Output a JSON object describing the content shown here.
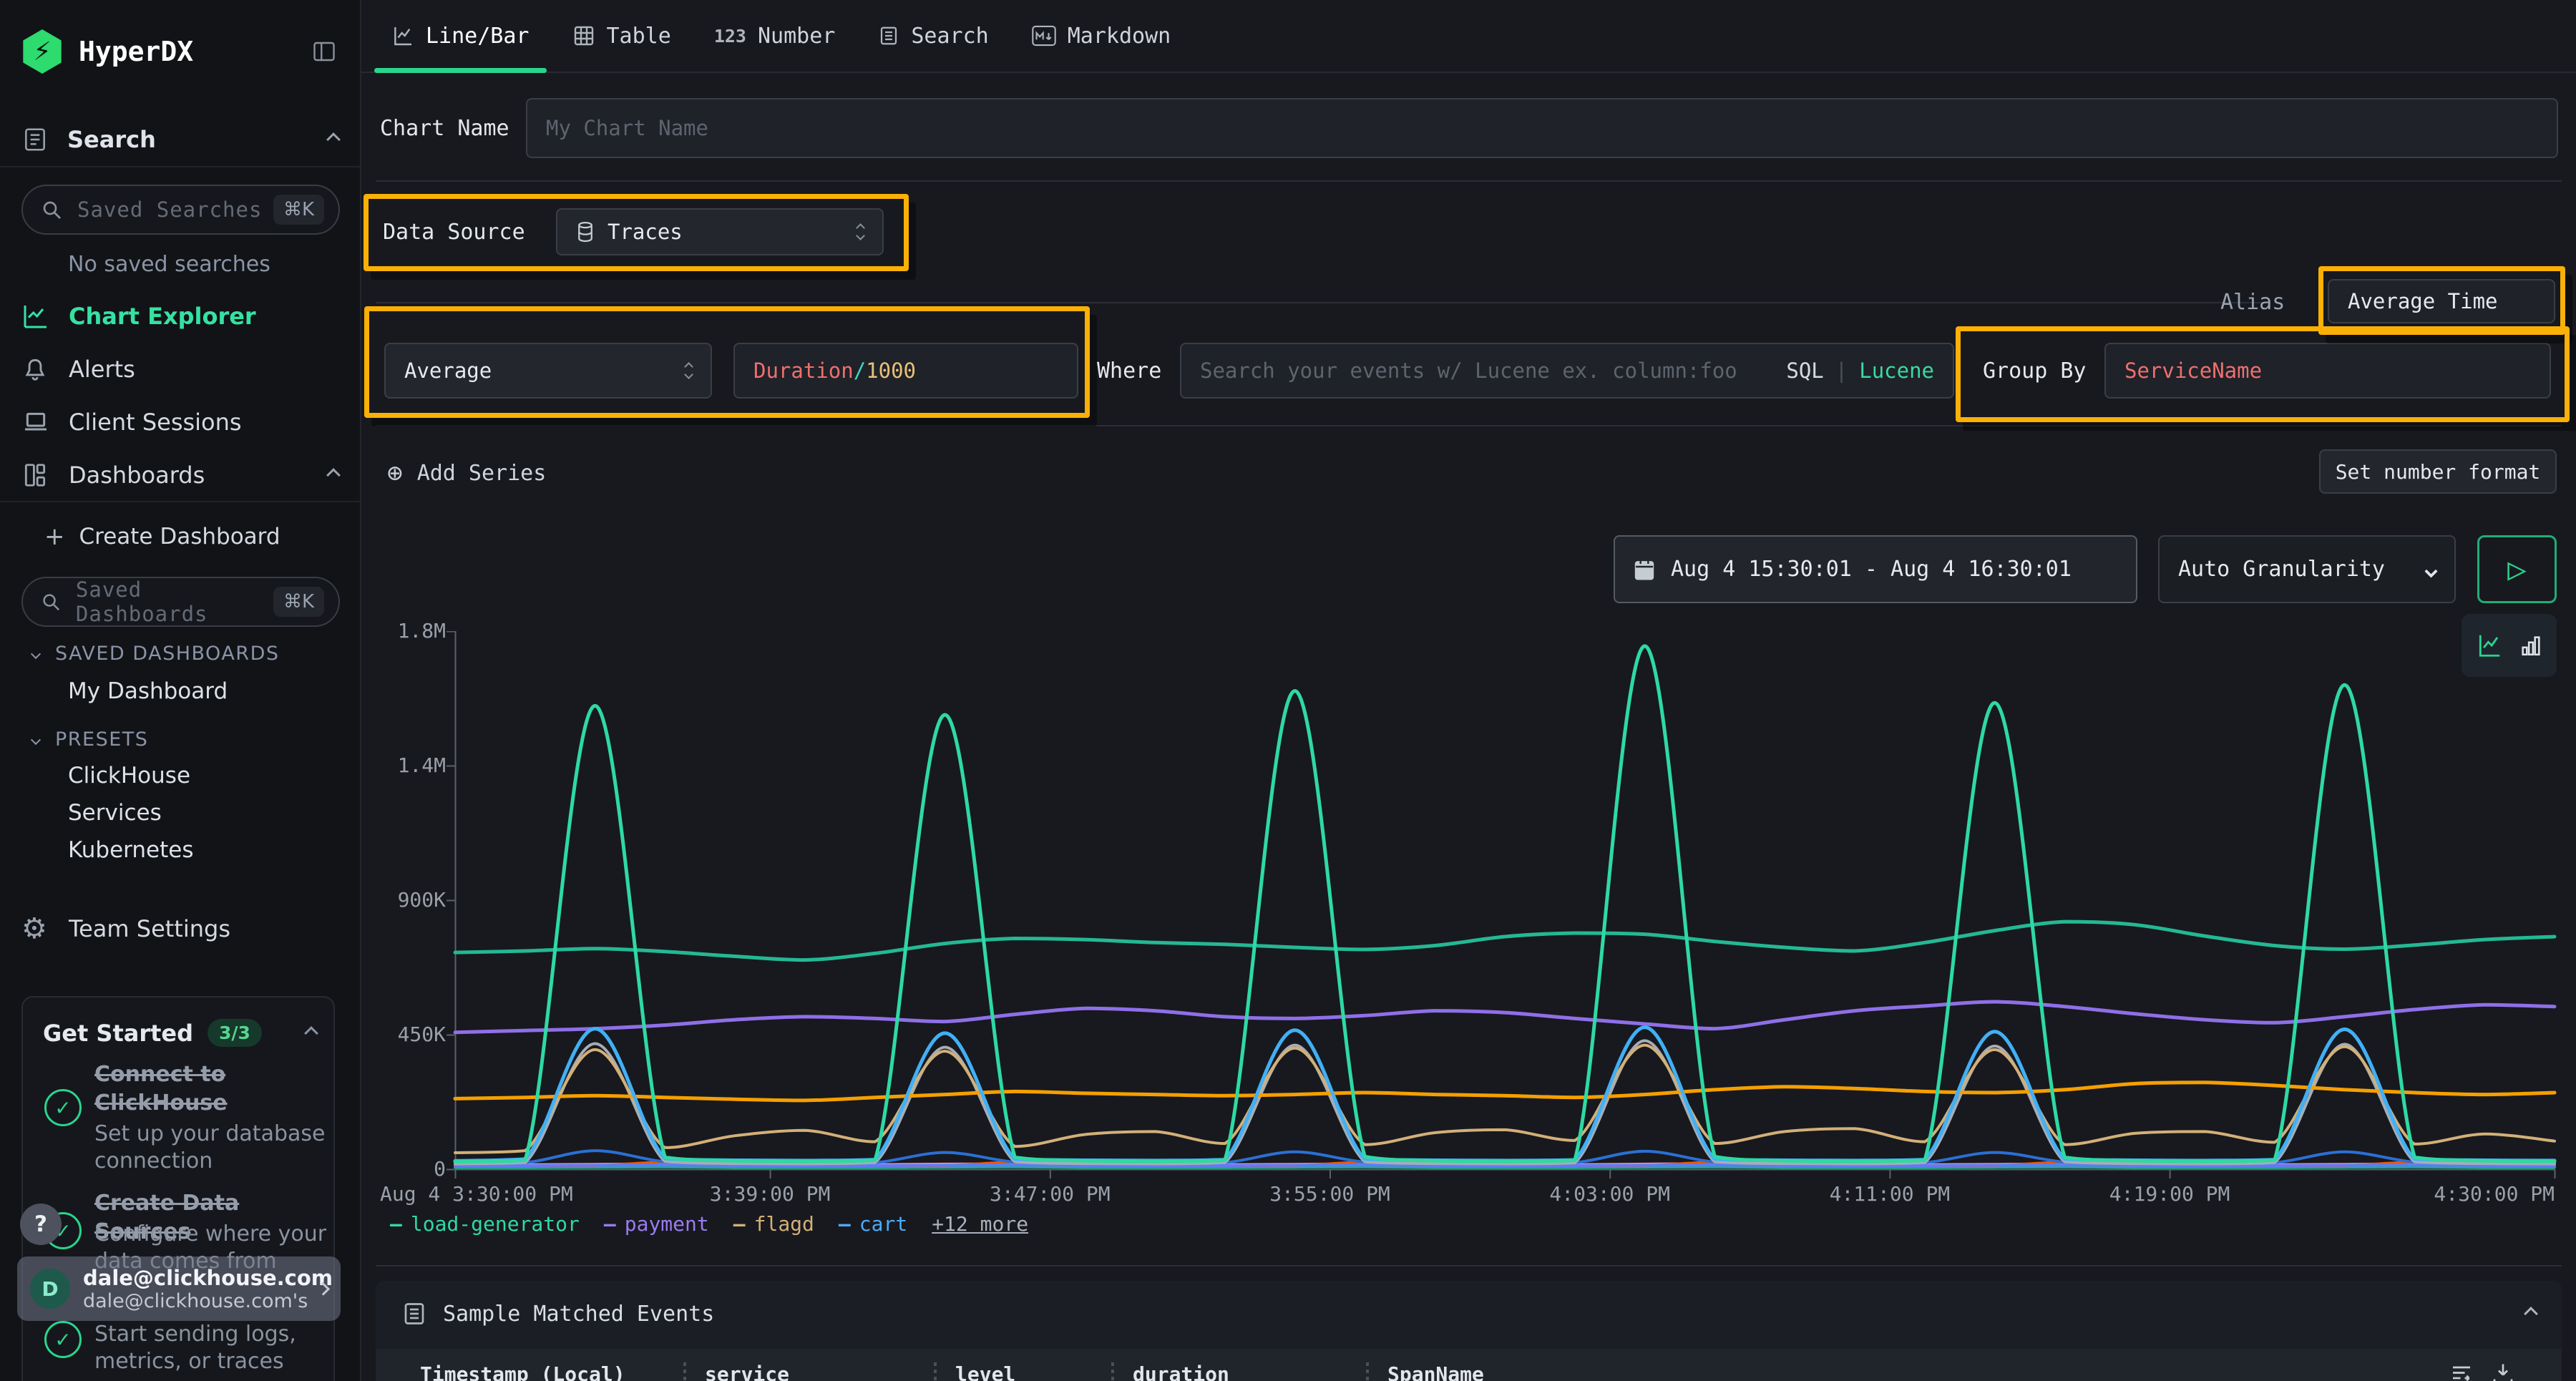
{
  "app": {
    "title": "HyperDX"
  },
  "colors": {
    "accent_green": "#2bd48d",
    "highlight_yellow": "#fab005",
    "expr_field_red": "#ef6f6f",
    "expr_operator_teal": "#3fd6c3",
    "expr_value_amber": "#e8c07a",
    "lucene_green": "#3bd9a0"
  },
  "sidebar": {
    "search_section": {
      "label": "Search"
    },
    "saved_searches": {
      "placeholder": "Saved Searches",
      "shortcut": "⌘K",
      "empty": "No saved searches"
    },
    "nav": [
      {
        "label": "Chart Explorer",
        "active": true
      },
      {
        "label": "Alerts"
      },
      {
        "label": "Client Sessions"
      },
      {
        "label": "Dashboards"
      }
    ],
    "create_dashboard": {
      "label": "Create Dashboard"
    },
    "saved_dashboards": {
      "placeholder": "Saved Dashboards",
      "shortcut": "⌘K"
    },
    "groups": [
      {
        "label": "SAVED DASHBOARDS",
        "items": [
          {
            "label": "My Dashboard"
          }
        ]
      },
      {
        "label": "PRESETS",
        "items": [
          {
            "label": "ClickHouse"
          },
          {
            "label": "Services"
          },
          {
            "label": "Kubernetes"
          }
        ]
      }
    ],
    "team_settings": {
      "label": "Team Settings"
    },
    "get_started": {
      "title": "Get Started",
      "badge": "3/3",
      "steps": [
        {
          "title": "Connect to ClickHouse",
          "subtitle": "Set up your database connection",
          "done": true
        },
        {
          "title": "Create Data Sources",
          "subtitle": "Configure where your data comes from",
          "done": true
        },
        {
          "title": "",
          "subtitle": "Start sending logs, metrics, or traces",
          "done": true
        }
      ]
    },
    "help_button": "?",
    "user": {
      "initial": "D",
      "email": "dale@clickhouse.com",
      "subtitle": "dale@clickhouse.com's"
    }
  },
  "tabs": [
    {
      "label": "Line/Bar",
      "active": true
    },
    {
      "label": "Table"
    },
    {
      "label": "Number",
      "icon_text": "123"
    },
    {
      "label": "Search"
    },
    {
      "label": "Markdown"
    }
  ],
  "editor": {
    "chart_name": {
      "label": "Chart Name",
      "placeholder": "My Chart Name",
      "value": ""
    },
    "data_source": {
      "label": "Data Source",
      "value": "Traces"
    },
    "aggregation": {
      "value": "Average"
    },
    "field": {
      "field": "Duration",
      "operator": "/",
      "value": "1000"
    },
    "where": {
      "label": "Where",
      "placeholder": "Search your events w/ Lucene ex. column:foo",
      "sql": "SQL",
      "divider": "|",
      "lucene": "Lucene"
    },
    "group_by": {
      "label": "Group By",
      "value": "ServiceName"
    },
    "alias": {
      "label": "Alias",
      "value": "Average Time"
    },
    "add_series": {
      "label": "Add Series"
    },
    "set_number_format": {
      "label": "Set number format"
    },
    "time_range": {
      "value": "Aug 4 15:30:01 - Aug 4 16:30:01"
    },
    "granularity": {
      "value": "Auto Granularity"
    }
  },
  "events_panel": {
    "title": "Sample Matched Events",
    "columns": [
      "Timestamp (Local)",
      "service",
      "level",
      "duration",
      "SpanName"
    ]
  },
  "chart_data": {
    "type": "line",
    "title": "",
    "x_unit": "minutes after Aug 4 3:30:00 PM",
    "x_step_minutes": 2,
    "x_range_minutes": [
      0,
      60
    ],
    "x_ticks": [
      {
        "minute": 0,
        "label": "Aug 4 3:30:00 PM"
      },
      {
        "minute": 9,
        "label": "3:39:00 PM"
      },
      {
        "minute": 17,
        "label": "3:47:00 PM"
      },
      {
        "minute": 25,
        "label": "3:55:00 PM"
      },
      {
        "minute": 33,
        "label": "4:03:00 PM"
      },
      {
        "minute": 41,
        "label": "4:11:00 PM"
      },
      {
        "minute": 49,
        "label": "4:19:00 PM"
      },
      {
        "minute": 60,
        "label": "4:30:00 PM"
      }
    ],
    "y_unit": "thousands (K)",
    "ylim": [
      0,
      1800
    ],
    "y_ticks": [
      {
        "value": 0,
        "label": "0"
      },
      {
        "value": 450,
        "label": "450K"
      },
      {
        "value": 900,
        "label": "900K"
      },
      {
        "value": 1350,
        "label": "1.4M"
      },
      {
        "value": 1800,
        "label": "1.8M"
      }
    ],
    "grid": false,
    "legend_position": "bottom",
    "legend": [
      {
        "label": "load-generator",
        "color": "#2fd9a3"
      },
      {
        "label": "payment",
        "color": "#9b7bf0"
      },
      {
        "label": "flagd",
        "color": "#d3b078"
      },
      {
        "label": "cart",
        "color": "#4dabf7"
      }
    ],
    "legend_more": "+12 more",
    "series": [
      {
        "name": "unnamed-teal",
        "color": "#11b384",
        "width": 4,
        "values": [
          6,
          6,
          7,
          8,
          6,
          6,
          6,
          7,
          8,
          6,
          6,
          6,
          7,
          8,
          6,
          6,
          6,
          7,
          8,
          6,
          6,
          6,
          7,
          8,
          6,
          6,
          6,
          7,
          8,
          6,
          6
        ]
      },
      {
        "name": "unnamed-pink",
        "color": "#ef8bb4",
        "width": 4,
        "values": [
          14,
          15,
          16,
          18,
          15,
          14,
          15,
          17,
          18,
          15,
          14,
          15,
          16,
          18,
          15,
          14,
          15,
          17,
          19,
          15,
          14,
          15,
          16,
          18,
          15,
          14,
          15,
          16,
          18,
          15,
          14
        ]
      },
      {
        "name": "unnamed-dark-orange",
        "color": "#e8590c",
        "width": 4,
        "values": [
          10,
          10,
          12,
          24,
          24,
          10,
          10,
          12,
          24,
          24,
          10,
          10,
          12,
          24,
          24,
          10,
          10,
          12,
          24,
          24,
          10,
          10,
          12,
          24,
          24,
          10,
          10,
          12,
          24,
          24,
          10
        ]
      },
      {
        "name": "unnamed-blue",
        "color": "#2b6fd4",
        "width": 4,
        "values": [
          20,
          22,
          62,
          25,
          20,
          21,
          22,
          56,
          24,
          20,
          21,
          22,
          58,
          24,
          21,
          20,
          22,
          60,
          24,
          21,
          20,
          22,
          56,
          24,
          20,
          21,
          22,
          58,
          24,
          21,
          20
        ]
      },
      {
        "name": "unnamed-indigo",
        "color": "#5c7cfa",
        "width": 4,
        "values": [
          12,
          12,
          13,
          14,
          12,
          12,
          12,
          13,
          14,
          12,
          12,
          12,
          13,
          14,
          12,
          12,
          12,
          13,
          14,
          12,
          12,
          12,
          13,
          14,
          12,
          12,
          12,
          13,
          14,
          12,
          12
        ]
      },
      {
        "name": "unnamed-gray",
        "color": "#a7adb5",
        "width": 4,
        "values": [
          18,
          22,
          420,
          26,
          19,
          18,
          22,
          408,
          25,
          19,
          18,
          22,
          415,
          25,
          19,
          18,
          21,
          430,
          25,
          19,
          18,
          22,
          412,
          25,
          19,
          18,
          22,
          418,
          25,
          19,
          18
        ]
      },
      {
        "name": "flagd",
        "color": "#d3b078",
        "width": 4,
        "values": [
          55,
          62,
          400,
          72,
          112,
          130,
          92,
          395,
          76,
          116,
          126,
          86,
          405,
          82,
          122,
          132,
          96,
          415,
          86,
          126,
          136,
          92,
          400,
          82,
          120,
          126,
          90,
          410,
          84,
          118,
          94
        ]
      },
      {
        "name": "unnamed-orange",
        "color": "#f59f00",
        "width": 5,
        "values": [
          236,
          240,
          246,
          240,
          234,
          230,
          240,
          250,
          260,
          254,
          250,
          246,
          250,
          256,
          250,
          246,
          240,
          250,
          266,
          276,
          270,
          260,
          256,
          266,
          286,
          290,
          280,
          266,
          256,
          250,
          256
        ]
      },
      {
        "name": "payment",
        "color": "#8f6fe8",
        "width": 5,
        "values": [
          458,
          464,
          470,
          482,
          500,
          510,
          504,
          494,
          518,
          538,
          530,
          510,
          504,
          514,
          530,
          524,
          504,
          486,
          470,
          500,
          530,
          546,
          560,
          544,
          520,
          500,
          490,
          510,
          534,
          550,
          544
        ]
      },
      {
        "name": "unnamed-green",
        "color": "#24b894",
        "width": 5,
        "values": [
          725,
          730,
          738,
          728,
          712,
          700,
          722,
          755,
          772,
          768,
          758,
          752,
          742,
          735,
          748,
          778,
          790,
          786,
          762,
          742,
          730,
          758,
          798,
          828,
          818,
          780,
          748,
          736,
          750,
          768,
          778
        ]
      },
      {
        "name": "cart",
        "color": "#41b0f5",
        "width": 5,
        "values": [
          28,
          34,
          470,
          36,
          30,
          29,
          32,
          455,
          34,
          30,
          29,
          32,
          465,
          34,
          30,
          29,
          31,
          475,
          34,
          30,
          29,
          32,
          460,
          34,
          30,
          29,
          32,
          468,
          34,
          30,
          29
        ]
      },
      {
        "name": "load-generator",
        "color": "#2fd9a3",
        "width": 5,
        "values": [
          25,
          30,
          1550,
          40,
          28,
          26,
          30,
          1520,
          40,
          28,
          26,
          30,
          1600,
          42,
          28,
          26,
          30,
          1750,
          42,
          28,
          26,
          30,
          1560,
          40,
          28,
          26,
          30,
          1620,
          40,
          28,
          26
        ]
      }
    ]
  }
}
